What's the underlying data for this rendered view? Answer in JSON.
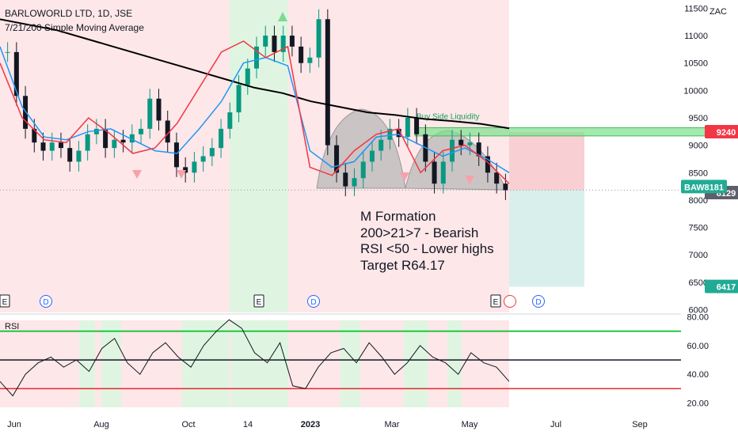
{
  "header": {
    "symbol_line": "BARLOWORLD LTD, 1D, JSE",
    "indicator_line": "7/21/200 Simple Moving Average",
    "currency": "ZAC"
  },
  "annotation": {
    "lines": [
      "M Formation",
      "200>21>7 - Bearish",
      "RSI <50 - Lower highs",
      "Target R64.17"
    ]
  },
  "zone_label": "Buy Side Liquidity",
  "price_tags": {
    "ticker": "BAW",
    "last": "8181",
    "ma": "8129",
    "resistance": "9240",
    "target": "6417"
  },
  "rsi_label": "RSI",
  "event_markers": [
    "E",
    "D",
    "E",
    "D",
    "E",
    "D"
  ],
  "colors": {
    "bull": "#089981",
    "bear": "#131722",
    "bear_bg": "#fde7e9",
    "bull_bg": "#dff5e1",
    "ma200": "#000000",
    "ma21": "#2196f3",
    "ma7": "#f23645",
    "zone": "#7ee08e",
    "target_zone": "#d9efec",
    "stop_zone": "#f8d0d4"
  },
  "chart_data": [
    {
      "type": "candlestick",
      "title": "BARLOWORLD LTD, 1D, JSE",
      "y_axis": {
        "ticks": [
          6000,
          6500,
          7000,
          7500,
          8000,
          8500,
          9000,
          9500,
          10000,
          10500,
          11000,
          11500
        ],
        "unit": "ZAC",
        "range": [
          5950,
          11650
        ]
      },
      "x_axis": {
        "ticks": [
          "Jun",
          "Aug",
          "Oct",
          "14",
          "2023",
          "Mar",
          "May",
          "Jul",
          "Sep"
        ]
      },
      "series": [
        {
          "name": "close",
          "values": [
            10700,
            9900,
            9300,
            9050,
            8900,
            9050,
            8950,
            8700,
            8900,
            9200,
            9300,
            8950,
            9100,
            9050,
            9200,
            9300,
            9850,
            9450,
            9050,
            8600,
            8500,
            8700,
            8800,
            8950,
            9300,
            9600,
            10100,
            10400,
            10800,
            11000,
            10700,
            11000,
            10800,
            10500,
            10600,
            11300,
            9000,
            8500,
            8250,
            8400,
            8700,
            8900,
            9100,
            9300,
            9150,
            9500,
            9200,
            8700,
            8300,
            8700,
            9100,
            9000,
            9050,
            8800,
            8500,
            8300,
            8181
          ]
        },
        {
          "name": "MA 200",
          "values": [
            11300,
            11200,
            11100,
            10950,
            10800,
            10650,
            10500,
            10350,
            10200,
            10050,
            9950,
            9800,
            9700,
            9600,
            9550,
            9480,
            9440,
            9390,
            9310
          ]
        },
        {
          "name": "MA 21",
          "values": [
            10800,
            9700,
            9150,
            9100,
            9250,
            9300,
            9100,
            8900,
            8850,
            9300,
            9800,
            10500,
            10600,
            10450,
            8900,
            8600,
            8700,
            9150,
            9200,
            9000,
            8800,
            8950,
            8750,
            8500
          ]
        },
        {
          "name": "MA 7",
          "values": [
            10500,
            9500,
            9100,
            9050,
            9500,
            9200,
            8850,
            8950,
            9400,
            10050,
            10700,
            10900,
            10600,
            10800,
            8600,
            8450,
            8900,
            9200,
            9300,
            8500,
            8900,
            9000,
            8700,
            8300
          ]
        }
      ],
      "levels": {
        "resistance": 9240,
        "last": 8181,
        "ma": 8129,
        "target": 6417
      }
    },
    {
      "type": "line",
      "title": "RSI",
      "y_axis": {
        "ticks": [
          20,
          40,
          60,
          80
        ],
        "range": [
          17,
          82
        ]
      },
      "bands": {
        "upper": 70,
        "middle": 50,
        "lower": 30
      },
      "series": [
        {
          "name": "RSI",
          "values": [
            35,
            25,
            40,
            48,
            52,
            45,
            50,
            42,
            58,
            65,
            48,
            40,
            55,
            62,
            52,
            45,
            60,
            70,
            78,
            72,
            55,
            48,
            62,
            32,
            30,
            45,
            55,
            58,
            48,
            62,
            52,
            40,
            48,
            60,
            52,
            48,
            40,
            55,
            48,
            45,
            35
          ]
        }
      ]
    }
  ]
}
